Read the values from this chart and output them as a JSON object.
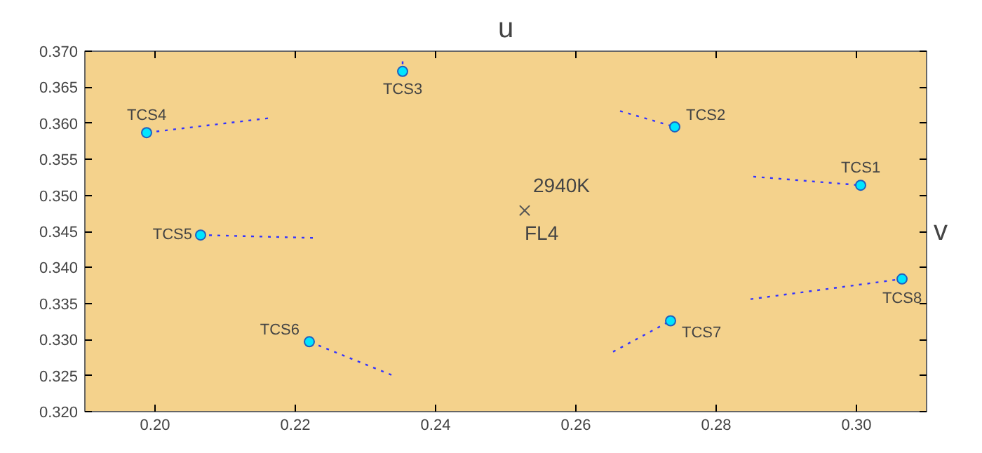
{
  "chart_data": {
    "type": "scatter",
    "xlabel": "u",
    "ylabel": "v",
    "xlim": [
      0.19,
      0.31
    ],
    "ylim": [
      0.32,
      0.37
    ],
    "xticks": [
      {
        "value": 0.2,
        "label": "0.20"
      },
      {
        "value": 0.22,
        "label": "0.22"
      },
      {
        "value": 0.24,
        "label": "0.24"
      },
      {
        "value": 0.26,
        "label": "0.26"
      },
      {
        "value": 0.28,
        "label": "0.28"
      },
      {
        "value": 0.3,
        "label": "0.30"
      }
    ],
    "yticks": [
      {
        "value": 0.32,
        "label": "0.320"
      },
      {
        "value": 0.325,
        "label": "0.325"
      },
      {
        "value": 0.33,
        "label": "0.330"
      },
      {
        "value": 0.335,
        "label": "0.335"
      },
      {
        "value": 0.34,
        "label": "0.340"
      },
      {
        "value": 0.345,
        "label": "0.345"
      },
      {
        "value": 0.35,
        "label": "0.350"
      },
      {
        "value": 0.355,
        "label": "0.355"
      },
      {
        "value": 0.36,
        "label": "0.360"
      },
      {
        "value": 0.365,
        "label": "0.365"
      },
      {
        "value": 0.37,
        "label": "0.370"
      }
    ],
    "grid": false,
    "series": [
      {
        "type": "line",
        "line_style": "dotted",
        "color": "#3333ff",
        "x": [
          0.2853,
          0.3006
        ],
        "values": [
          0.3526,
          0.3514
        ]
      },
      {
        "type": "line",
        "line_style": "dotted",
        "color": "#3333ff",
        "x": [
          0.2663,
          0.2741
        ],
        "values": [
          0.3617,
          0.3595
        ]
      },
      {
        "type": "line",
        "line_style": "dotted",
        "color": "#3333ff",
        "x": [
          0.2353,
          0.2353
        ],
        "values": [
          0.3686,
          0.3672
        ]
      },
      {
        "type": "line",
        "line_style": "dotted",
        "color": "#3333ff",
        "x": [
          0.2161,
          0.1988
        ],
        "values": [
          0.3607,
          0.3587
        ]
      },
      {
        "type": "line",
        "line_style": "dotted",
        "color": "#3333ff",
        "x": [
          0.2225,
          0.2065
        ],
        "values": [
          0.3441,
          0.3445
        ]
      },
      {
        "type": "line",
        "line_style": "dotted",
        "color": "#3333ff",
        "x": [
          0.2337,
          0.222
        ],
        "values": [
          0.3251,
          0.3297
        ]
      },
      {
        "type": "line",
        "line_style": "dotted",
        "color": "#3333ff",
        "x": [
          0.2653,
          0.2735
        ],
        "values": [
          0.3283,
          0.3326
        ]
      },
      {
        "type": "line",
        "line_style": "dotted",
        "color": "#3333ff",
        "x": [
          0.2849,
          0.3065
        ],
        "values": [
          0.3356,
          0.3384
        ]
      },
      {
        "marker": "circle",
        "color": "#00e5ff",
        "x": [
          0.3006,
          0.2741,
          0.2353,
          0.1988,
          0.2065,
          0.222,
          0.2735,
          0.3065
        ],
        "values": [
          0.3514,
          0.3595,
          0.3672,
          0.3587,
          0.3445,
          0.3297,
          0.3326,
          0.3384
        ]
      },
      {
        "marker": "cross",
        "color": "#555555",
        "x": [
          0.2527
        ],
        "values": [
          0.3479
        ]
      }
    ],
    "annotations": [
      {
        "text": "TCS1",
        "x": 0.3006,
        "y": 0.3514
      },
      {
        "text": "TCS2",
        "x": 0.2741,
        "y": 0.3595
      },
      {
        "text": "TCS3",
        "x": 0.2353,
        "y": 0.3672
      },
      {
        "text": "TCS4",
        "x": 0.1988,
        "y": 0.3587
      },
      {
        "text": "TCS5",
        "x": 0.2065,
        "y": 0.3445
      },
      {
        "text": "TCS6",
        "x": 0.222,
        "y": 0.3297
      },
      {
        "text": "TCS7",
        "x": 0.2735,
        "y": 0.3326
      },
      {
        "text": "TCS8",
        "x": 0.3065,
        "y": 0.3384
      },
      {
        "text": "2940K",
        "x": 0.2527,
        "y": 0.3479
      },
      {
        "text": "FL4",
        "x": 0.2527,
        "y": 0.3479
      }
    ]
  }
}
